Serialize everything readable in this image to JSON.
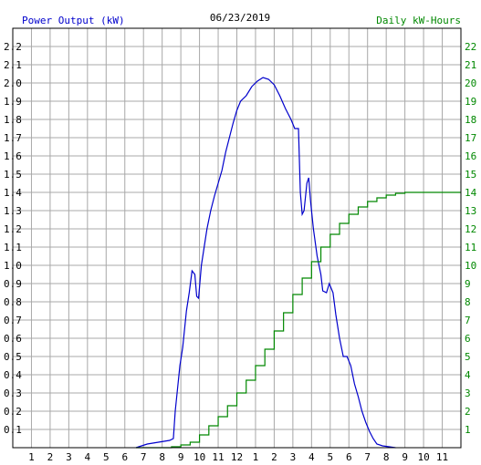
{
  "header": {
    "left_label": "Power Output (kW)",
    "title": "06/23/2019",
    "right_label": "Daily kW-Hours"
  },
  "colors": {
    "power": "#0000cc",
    "energy": "#008800",
    "grid": "#a8a8a8",
    "frame": "#000000",
    "label_left": "#0000cc",
    "label_right": "#008800",
    "title": "#000000"
  },
  "chart_data": {
    "type": "line",
    "title": "06/23/2019",
    "grid": true,
    "x_ticks": [
      "1",
      "2",
      "3",
      "4",
      "5",
      "6",
      "7",
      "8",
      "9",
      "10",
      "11",
      "12",
      "1",
      "2",
      "3",
      "4",
      "5",
      "6",
      "7",
      "8",
      "9",
      "10",
      "11"
    ],
    "x_range": [
      0,
      24
    ],
    "y_left": {
      "label": "Power Output (kW)",
      "range": [
        0,
        2.3
      ],
      "ticks": [
        "0.1",
        "0.2",
        "0.3",
        "0.4",
        "0.5",
        "0.6",
        "0.7",
        "0.8",
        "0.9",
        "1.0",
        "1.1",
        "1.2",
        "1.3",
        "1.4",
        "1.5",
        "1.6",
        "1.7",
        "1.8",
        "1.9",
        "2.0",
        "2.1",
        "2.2"
      ]
    },
    "y_right": {
      "label": "Daily kW-Hours",
      "range": [
        0,
        23
      ],
      "ticks": [
        "1",
        "2",
        "3",
        "4",
        "5",
        "6",
        "7",
        "8",
        "9",
        "10",
        "11",
        "12",
        "13",
        "14",
        "15",
        "16",
        "17",
        "18",
        "19",
        "20",
        "21",
        "22"
      ]
    },
    "series": [
      {
        "name": "Power Output (kW)",
        "axis": "left",
        "points": [
          [
            6.6,
            0.0
          ],
          [
            7.2,
            0.02
          ],
          [
            7.8,
            0.03
          ],
          [
            8.4,
            0.04
          ],
          [
            8.6,
            0.05
          ],
          [
            8.7,
            0.2
          ],
          [
            8.8,
            0.3
          ],
          [
            8.95,
            0.45
          ],
          [
            9.1,
            0.55
          ],
          [
            9.3,
            0.75
          ],
          [
            9.45,
            0.85
          ],
          [
            9.6,
            0.97
          ],
          [
            9.75,
            0.95
          ],
          [
            9.85,
            0.83
          ],
          [
            9.95,
            0.82
          ],
          [
            10.1,
            1.0
          ],
          [
            10.25,
            1.1
          ],
          [
            10.4,
            1.2
          ],
          [
            10.6,
            1.3
          ],
          [
            10.8,
            1.38
          ],
          [
            11.0,
            1.45
          ],
          [
            11.2,
            1.52
          ],
          [
            11.4,
            1.62
          ],
          [
            11.6,
            1.7
          ],
          [
            11.8,
            1.78
          ],
          [
            12.0,
            1.85
          ],
          [
            12.2,
            1.9
          ],
          [
            12.5,
            1.93
          ],
          [
            12.8,
            1.98
          ],
          [
            13.1,
            2.01
          ],
          [
            13.4,
            2.03
          ],
          [
            13.7,
            2.02
          ],
          [
            14.0,
            1.99
          ],
          [
            14.3,
            1.93
          ],
          [
            14.6,
            1.86
          ],
          [
            14.9,
            1.8
          ],
          [
            15.1,
            1.75
          ],
          [
            15.3,
            1.75
          ],
          [
            15.4,
            1.4
          ],
          [
            15.5,
            1.28
          ],
          [
            15.6,
            1.3
          ],
          [
            15.75,
            1.45
          ],
          [
            15.85,
            1.48
          ],
          [
            15.95,
            1.35
          ],
          [
            16.1,
            1.2
          ],
          [
            16.3,
            1.05
          ],
          [
            16.5,
            0.95
          ],
          [
            16.6,
            0.86
          ],
          [
            16.8,
            0.85
          ],
          [
            16.95,
            0.9
          ],
          [
            17.15,
            0.85
          ],
          [
            17.3,
            0.73
          ],
          [
            17.5,
            0.6
          ],
          [
            17.7,
            0.5
          ],
          [
            17.9,
            0.5
          ],
          [
            18.1,
            0.45
          ],
          [
            18.3,
            0.35
          ],
          [
            18.5,
            0.28
          ],
          [
            18.7,
            0.2
          ],
          [
            18.9,
            0.14
          ],
          [
            19.1,
            0.09
          ],
          [
            19.3,
            0.05
          ],
          [
            19.5,
            0.02
          ],
          [
            19.8,
            0.01
          ],
          [
            20.5,
            0.0
          ]
        ]
      },
      {
        "name": "Daily kW-Hours",
        "axis": "right",
        "points": [
          [
            6.6,
            0.0
          ],
          [
            8.5,
            0.05
          ],
          [
            9.0,
            0.15
          ],
          [
            9.5,
            0.3
          ],
          [
            10.0,
            0.7
          ],
          [
            10.5,
            1.2
          ],
          [
            11.0,
            1.7
          ],
          [
            11.5,
            2.3
          ],
          [
            12.0,
            3.0
          ],
          [
            12.5,
            3.7
          ],
          [
            13.0,
            4.5
          ],
          [
            13.5,
            5.4
          ],
          [
            14.0,
            6.4
          ],
          [
            14.5,
            7.4
          ],
          [
            15.0,
            8.4
          ],
          [
            15.5,
            9.3
          ],
          [
            16.0,
            10.2
          ],
          [
            16.5,
            11.0
          ],
          [
            17.0,
            11.7
          ],
          [
            17.5,
            12.3
          ],
          [
            18.0,
            12.8
          ],
          [
            18.5,
            13.2
          ],
          [
            19.0,
            13.5
          ],
          [
            19.5,
            13.7
          ],
          [
            20.0,
            13.85
          ],
          [
            20.5,
            13.95
          ],
          [
            21.0,
            14.0
          ],
          [
            22.0,
            14.0
          ],
          [
            24.0,
            14.0
          ]
        ]
      }
    ]
  }
}
